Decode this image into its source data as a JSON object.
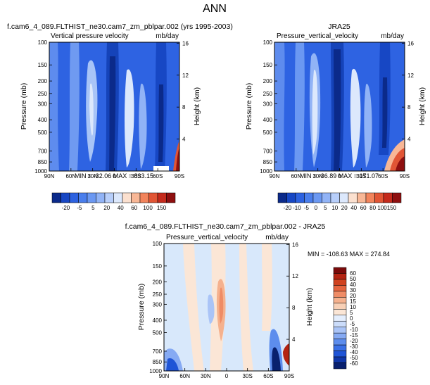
{
  "figure_title": "ANN",
  "chart_data": [
    {
      "type": "heatmap",
      "title": "f.cam6_4_089.FLTHIST_ne30.cam7_zm_pblpar.002 (yrs 1995-2003)",
      "subtitle_left": "Vertical pressure velocity",
      "subtitle_right": "mb/day",
      "ylabel": "Pressure (mb)",
      "ylabel_right": "Height (km)",
      "x_ticks": [
        "90N",
        "60N",
        "30N",
        "0",
        "30S",
        "60S",
        "90S"
      ],
      "y_ticks": [
        "100",
        "150",
        "200",
        "250",
        "300",
        "400",
        "500",
        "700",
        "850",
        "1000"
      ],
      "y_ticks_right": [
        "16",
        "12",
        "8",
        "4"
      ],
      "stats": "MIN = -32.06  MAX = 833.15",
      "colorbar_labels": [
        "-20",
        "-5",
        "5",
        "20",
        "40",
        "60",
        "100",
        "150"
      ]
    },
    {
      "type": "heatmap",
      "title": "JRA25",
      "subtitle_left": "Pressure_vertical_velocity",
      "subtitle_right": "mb/day",
      "ylabel": "Pressure (mb)",
      "ylabel_right": "Height (km)",
      "x_ticks": [
        "90N",
        "60N",
        "30N",
        "0",
        "30S",
        "60S",
        "90S"
      ],
      "y_ticks": [
        "100",
        "150",
        "200",
        "250",
        "300",
        "400",
        "500",
        "700",
        "850",
        "1000"
      ],
      "y_ticks_right": [
        "16",
        "12",
        "8",
        "4"
      ],
      "stats": "MIN = -36.89  MAX = 171.07",
      "colorbar_labels": [
        "-20",
        "-10",
        "-5",
        "0",
        "5",
        "10",
        "20",
        "40",
        "60",
        "80",
        "100",
        "150"
      ]
    },
    {
      "type": "heatmap",
      "title": "f.cam6_4_089.FLTHIST_ne30.cam7_zm_pblpar.002 - JRA25",
      "subtitle_left": "Pressure_vertical_velocity",
      "subtitle_right": "mb/day",
      "ylabel": "Pressure (mb)",
      "ylabel_right": "Height (km)",
      "x_ticks": [
        "90N",
        "60N",
        "30N",
        "0",
        "30S",
        "60S",
        "90S"
      ],
      "y_ticks": [
        "100",
        "150",
        "200",
        "250",
        "300",
        "400",
        "500",
        "700",
        "850",
        "1000"
      ],
      "y_ticks_right": [
        "16",
        "12",
        "8",
        "4"
      ],
      "stats": "MIN = -108.63  MAX = 274.84",
      "colorbar_labels": [
        "60",
        "50",
        "40",
        "30",
        "20",
        "15",
        "10",
        "5",
        "0",
        "-5",
        "-10",
        "-15",
        "-20",
        "-30",
        "-40",
        "-50",
        "-60"
      ]
    }
  ],
  "colors": {
    "test_scale": [
      "#0b2a8a",
      "#1747c4",
      "#2d62e0",
      "#4a7eec",
      "#6b98f2",
      "#91b3f6",
      "#b7cefa",
      "#dce8fc",
      "#fbe0cf",
      "#f8b796",
      "#f2845c",
      "#e15535",
      "#c42a1c",
      "#8e0f0f"
    ],
    "diff_scale": [
      "#08206e",
      "#0f36a8",
      "#1f54d6",
      "#3a70e6",
      "#5d8ded",
      "#86aaf3",
      "#aac4f7",
      "#cbdcfa",
      "#e4eefd",
      "#fbe6d6",
      "#f8d0b6",
      "#f5b18e",
      "#ef8c66",
      "#e5653f",
      "#d0421f",
      "#b42412",
      "#7a0a0a"
    ],
    "field_base": "#2e63e2",
    "diff_base": "#d8e8fb"
  }
}
